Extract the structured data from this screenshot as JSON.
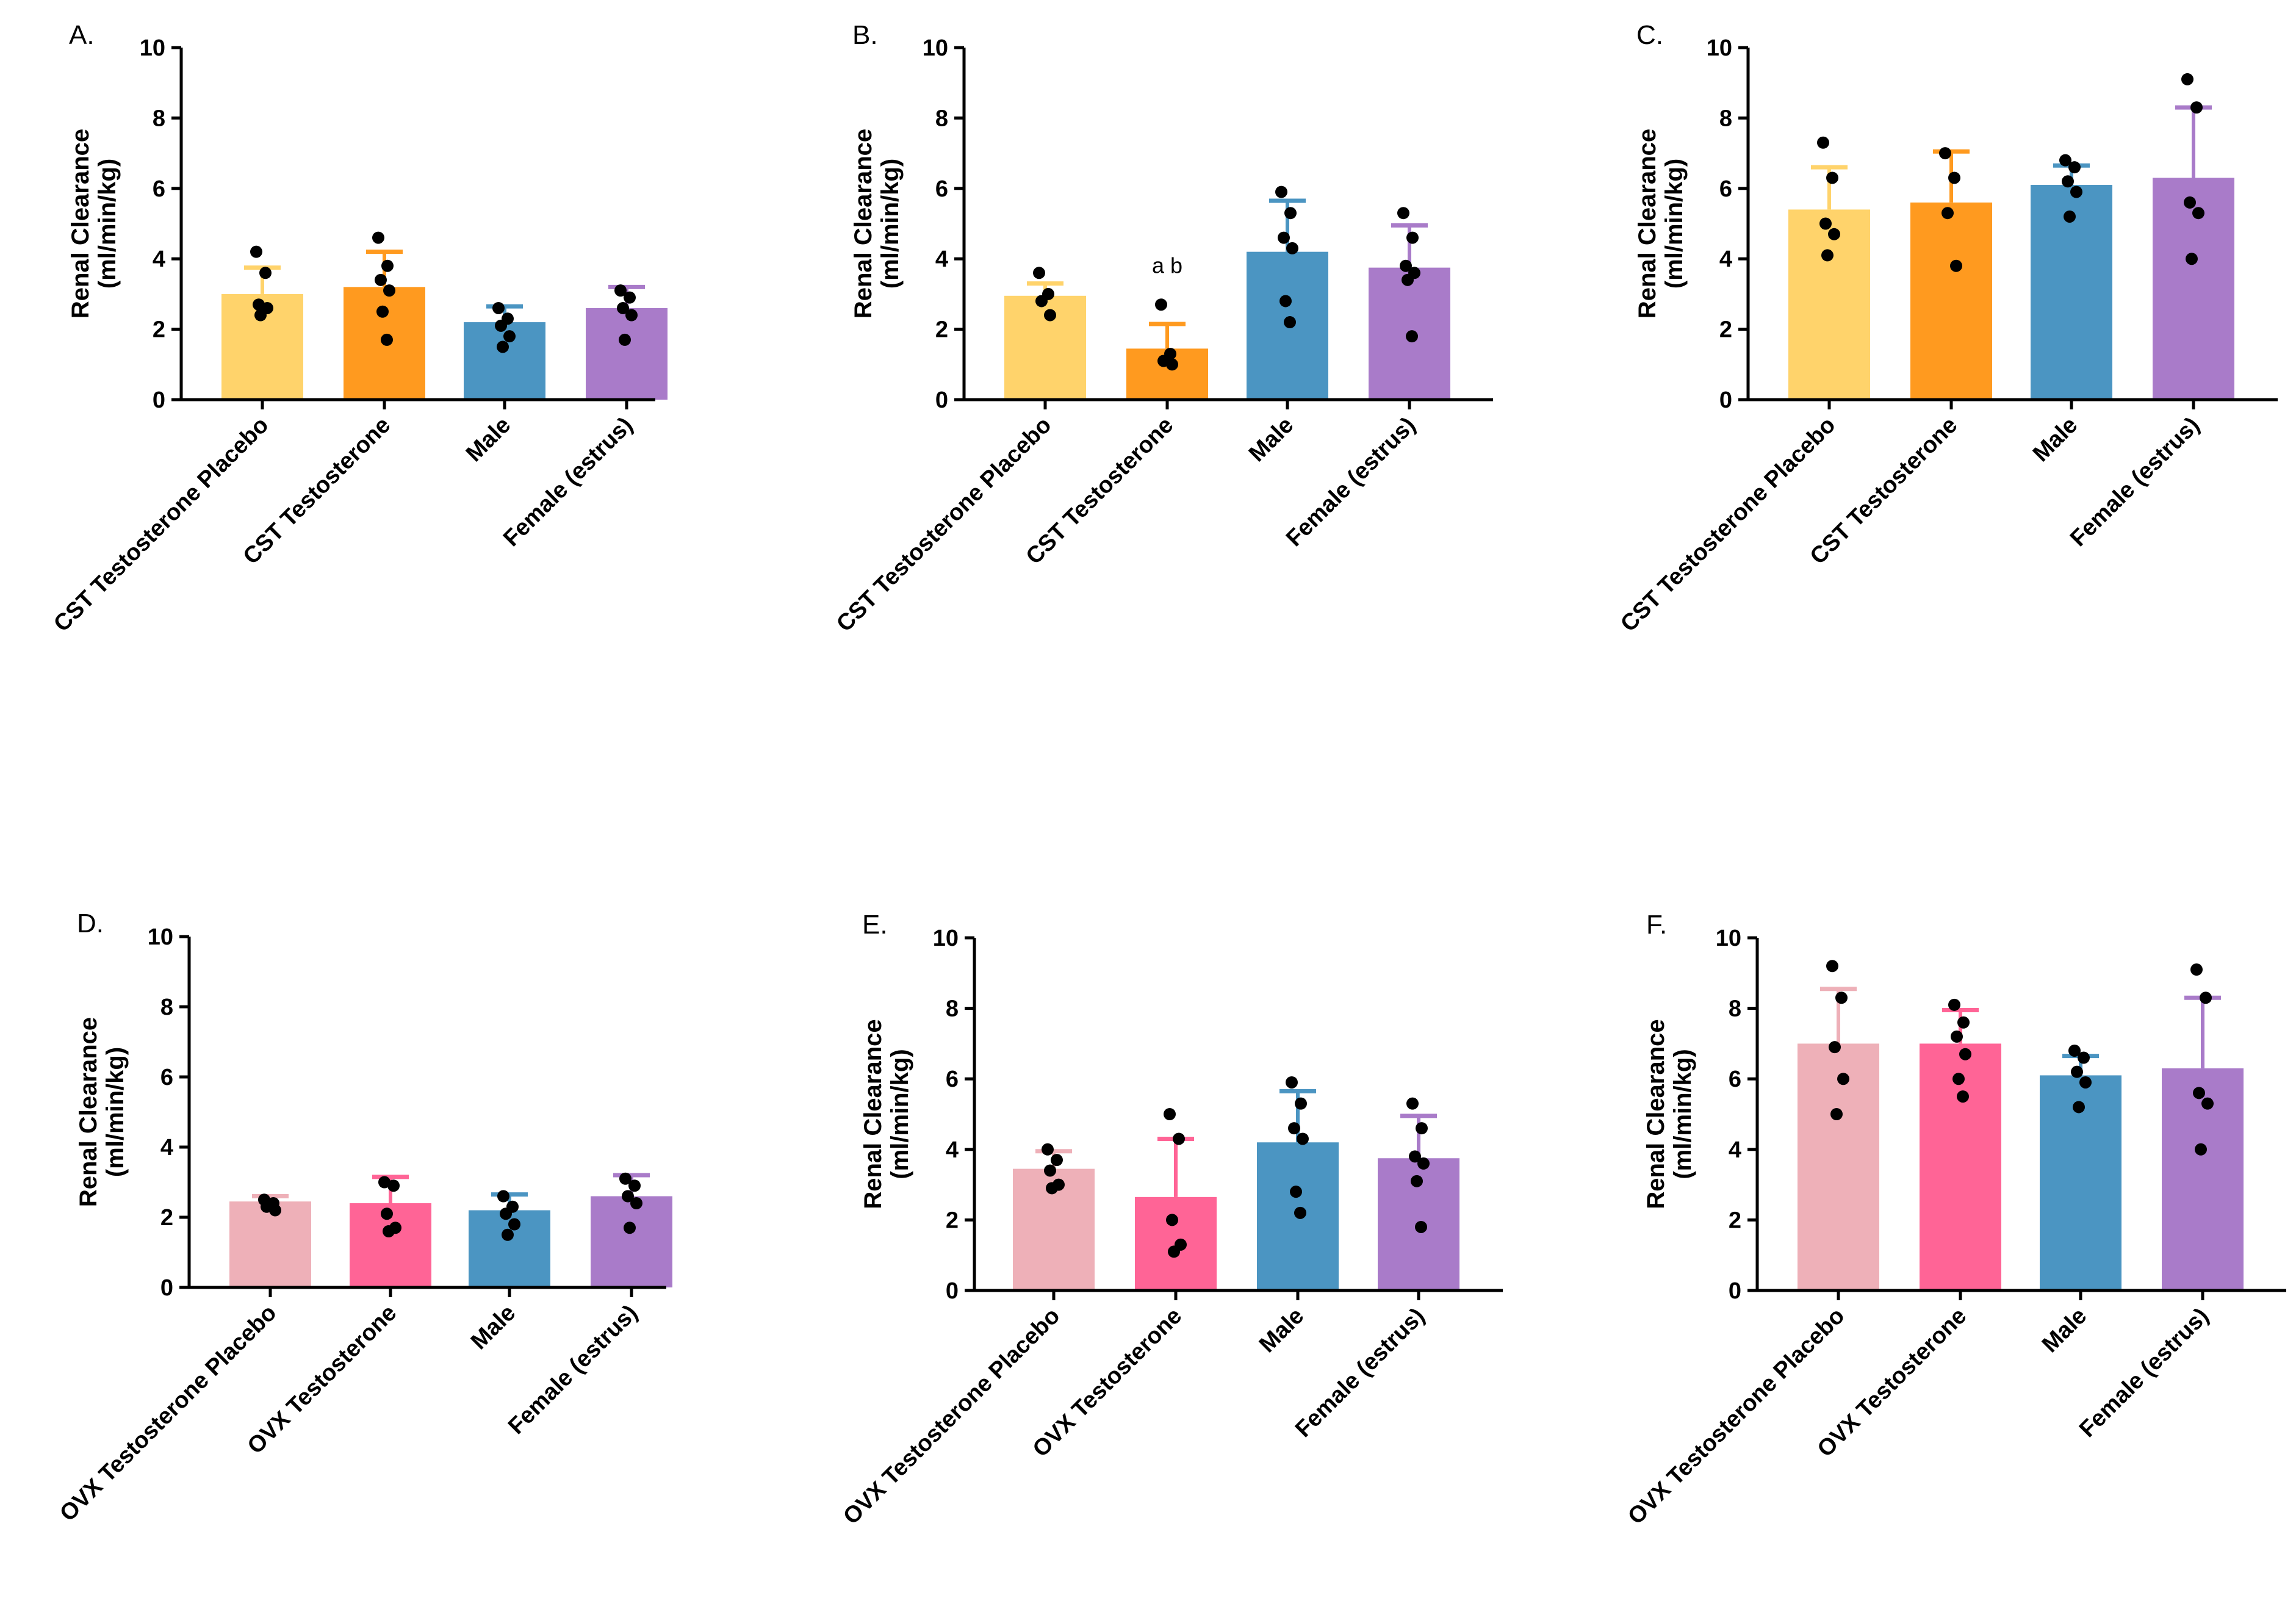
{
  "figure": {
    "ylabel_line1": "Renal Clearance",
    "ylabel_line2": "(ml/min/kg)"
  },
  "chart_data": [
    {
      "panel": "A.",
      "type": "bar",
      "categories": [
        "CST Testosterone Placebo",
        "CST Testosterone",
        "Male",
        "Female (estrus)"
      ],
      "values": [
        3.0,
        3.2,
        2.2,
        2.6
      ],
      "errors": [
        0.75,
        1.0,
        0.45,
        0.6
      ],
      "colors": [
        "#FFD36B",
        "#FF9A1F",
        "#4B95C2",
        "#A97BC9"
      ],
      "points": [
        [
          4.2,
          3.6,
          2.7,
          2.6,
          2.4
        ],
        [
          4.6,
          3.8,
          3.4,
          3.1,
          2.5,
          1.7
        ],
        [
          2.6,
          2.3,
          2.1,
          1.8,
          1.5
        ],
        [
          3.1,
          2.9,
          2.6,
          2.4,
          1.7
        ]
      ],
      "ylim": [
        0,
        10
      ],
      "yticks": [
        "0",
        "2",
        "4",
        "6",
        "8",
        "10"
      ],
      "annotations": []
    },
    {
      "panel": "B.",
      "type": "bar",
      "categories": [
        "CST Testosterone Placebo",
        "CST Testosterone",
        "Male",
        "Female (estrus)"
      ],
      "values": [
        2.95,
        1.45,
        4.2,
        3.75
      ],
      "errors": [
        0.35,
        0.7,
        1.45,
        1.2
      ],
      "colors": [
        "#FFD36B",
        "#FF9A1F",
        "#4B95C2",
        "#A97BC9"
      ],
      "points": [
        [
          3.6,
          3.0,
          2.8,
          2.4
        ],
        [
          2.7,
          1.3,
          1.1,
          1.0
        ],
        [
          5.9,
          5.3,
          4.6,
          4.3,
          2.8,
          2.2
        ],
        [
          5.3,
          4.6,
          3.8,
          3.6,
          3.4,
          1.8
        ]
      ],
      "ylim": [
        0,
        10
      ],
      "yticks": [
        "0",
        "2",
        "4",
        "6",
        "8",
        "10"
      ],
      "annotations": [
        {
          "category_index": 1,
          "text": "a b",
          "y": 3.6
        }
      ]
    },
    {
      "panel": "C.",
      "type": "bar",
      "categories": [
        "CST Testosterone Placebo",
        "CST Testosterone",
        "Male",
        "Female (estrus)"
      ],
      "values": [
        5.4,
        5.6,
        6.1,
        6.3
      ],
      "errors": [
        1.2,
        1.45,
        0.55,
        2.0
      ],
      "colors": [
        "#FFD36B",
        "#FF9A1F",
        "#4B95C2",
        "#A97BC9"
      ],
      "points": [
        [
          7.3,
          6.3,
          5.0,
          4.7,
          4.1
        ],
        [
          7.0,
          6.3,
          5.3,
          3.8
        ],
        [
          6.8,
          6.6,
          6.2,
          5.9,
          5.2
        ],
        [
          9.1,
          8.3,
          5.6,
          5.3,
          4.0
        ]
      ],
      "ylim": [
        0,
        10
      ],
      "yticks": [
        "0",
        "2",
        "4",
        "6",
        "8",
        "10"
      ],
      "annotations": []
    },
    {
      "panel": "D.",
      "type": "bar",
      "categories": [
        "OVX Testosterone Placebo",
        "OVX Testosterone",
        "Male",
        "Female (estrus)"
      ],
      "values": [
        2.45,
        2.4,
        2.2,
        2.6
      ],
      "errors": [
        0.15,
        0.75,
        0.45,
        0.6
      ],
      "colors": [
        "#EEB0B8",
        "#FF6496",
        "#4B95C2",
        "#A97BC9"
      ],
      "points": [
        [
          2.5,
          2.4,
          2.3,
          2.2
        ],
        [
          3.0,
          2.9,
          2.1,
          1.7,
          1.6
        ],
        [
          2.6,
          2.3,
          2.1,
          1.8,
          1.5
        ],
        [
          3.1,
          2.9,
          2.6,
          2.4,
          1.7
        ]
      ],
      "ylim": [
        0,
        10
      ],
      "yticks": [
        "0",
        "2",
        "4",
        "6",
        "8",
        "10"
      ],
      "annotations": []
    },
    {
      "panel": "E.",
      "type": "bar",
      "categories": [
        "OVX Testosterone Placebo",
        "OVX Testosterone",
        "Male",
        "Female (estrus)"
      ],
      "values": [
        3.45,
        2.65,
        4.2,
        3.75
      ],
      "errors": [
        0.5,
        1.65,
        1.45,
        1.2
      ],
      "colors": [
        "#EEB0B8",
        "#FF6496",
        "#4B95C2",
        "#A97BC9"
      ],
      "points": [
        [
          4.0,
          3.7,
          3.4,
          3.0,
          2.9
        ],
        [
          5.0,
          4.3,
          2.0,
          1.3,
          1.1
        ],
        [
          5.9,
          5.3,
          4.6,
          4.3,
          2.8,
          2.2
        ],
        [
          5.3,
          4.6,
          3.8,
          3.6,
          3.1,
          1.8
        ]
      ],
      "ylim": [
        0,
        10
      ],
      "yticks": [
        "0",
        "2",
        "4",
        "6",
        "8",
        "10"
      ],
      "annotations": []
    },
    {
      "panel": "F.",
      "type": "bar",
      "categories": [
        "OVX Testosterone Placebo",
        "OVX Testosterone",
        "Male",
        "Female (estrus)"
      ],
      "values": [
        7.0,
        7.0,
        6.1,
        6.3
      ],
      "errors": [
        1.55,
        0.95,
        0.55,
        2.0
      ],
      "colors": [
        "#EEB0B8",
        "#FF6496",
        "#4B95C2",
        "#A97BC9"
      ],
      "points": [
        [
          9.2,
          8.3,
          6.9,
          6.0,
          5.0
        ],
        [
          8.1,
          7.6,
          7.2,
          6.7,
          6.0,
          5.5
        ],
        [
          6.8,
          6.6,
          6.2,
          5.9,
          5.2
        ],
        [
          9.1,
          8.3,
          5.6,
          5.3,
          4.0
        ]
      ],
      "ylim": [
        0,
        10
      ],
      "yticks": [
        "0",
        "2",
        "4",
        "6",
        "8",
        "10"
      ],
      "annotations": []
    }
  ]
}
